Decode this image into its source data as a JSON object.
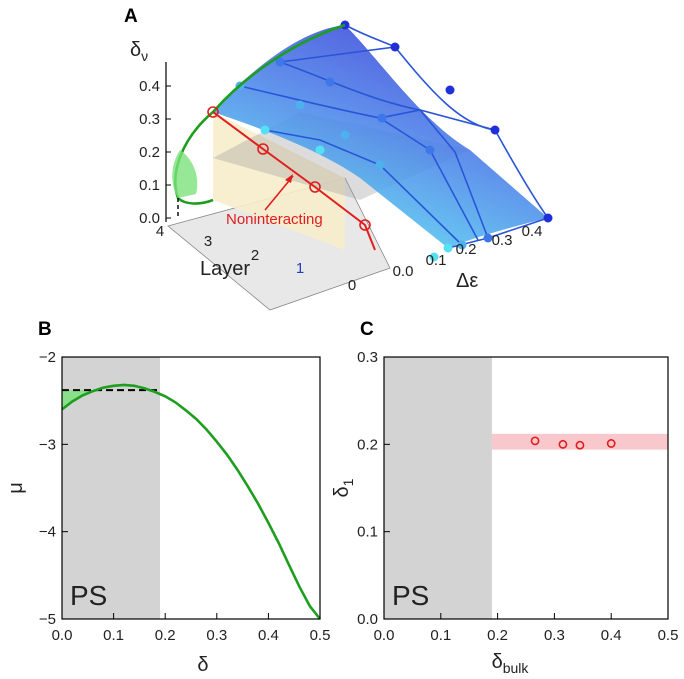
{
  "panels": {
    "a": {
      "letter": "A",
      "z_label": "δ_ν",
      "x_label": "Δε",
      "y_label": "Layer",
      "annotation": "Noninteracting",
      "z_ticks": [
        "0.0",
        "0.1",
        "0.2",
        "0.3",
        "0.4"
      ],
      "x_ticks": [
        "0.0",
        "0.1",
        "0.2",
        "0.3",
        "0.4"
      ],
      "layer_ticks": [
        "0",
        "1",
        "2",
        "3",
        "4"
      ],
      "colors": {
        "surface_top": "#3a3ad8",
        "surface_bottom": "#56e0f4",
        "green": "#1e9e1e",
        "red": "#e01e1e",
        "plane": "#f7edcc"
      }
    },
    "b": {
      "letter": "B",
      "region_label": "PS"
    },
    "c": {
      "letter": "C",
      "region_label": "PS"
    }
  },
  "chart_data": [
    {
      "type": "line",
      "panel": "B",
      "title": "",
      "xlabel": "δ",
      "ylabel": "μ",
      "xlim": [
        0,
        0.5
      ],
      "ylim": [
        -5,
        -2
      ],
      "x_ticks": [
        "0.0",
        "0.1",
        "0.2",
        "0.3",
        "0.4",
        "0.5"
      ],
      "y_ticks": [
        "−2",
        "−3",
        "−4",
        "−5"
      ],
      "shaded_region": {
        "x": [
          0,
          0.19
        ],
        "color": "#d3d3d3"
      },
      "maxwell_line": {
        "x": [
          0,
          0.19
        ],
        "y": -2.38
      },
      "series": [
        {
          "color": "#1e9e1e",
          "x": [
            0,
            0.02,
            0.04,
            0.06,
            0.08,
            0.1,
            0.12,
            0.14,
            0.16,
            0.18,
            0.2,
            0.22,
            0.24,
            0.26,
            0.28,
            0.3,
            0.32,
            0.34,
            0.36,
            0.38,
            0.4,
            0.42,
            0.44,
            0.46,
            0.48,
            0.5
          ],
          "y": [
            -2.6,
            -2.51,
            -2.44,
            -2.39,
            -2.35,
            -2.33,
            -2.32,
            -2.33,
            -2.36,
            -2.4,
            -2.45,
            -2.52,
            -2.61,
            -2.71,
            -2.83,
            -2.97,
            -3.12,
            -3.29,
            -3.48,
            -3.68,
            -3.9,
            -4.13,
            -4.38,
            -4.63,
            -4.85,
            -5.0
          ]
        }
      ]
    },
    {
      "type": "scatter",
      "panel": "C",
      "title": "",
      "xlabel": "δ_bulk",
      "ylabel": "δ_1",
      "xlim": [
        0,
        0.5
      ],
      "ylim": [
        0,
        0.3
      ],
      "x_ticks": [
        "0.0",
        "0.1",
        "0.2",
        "0.3",
        "0.4",
        "0.5"
      ],
      "y_ticks": [
        "0.0",
        "0.1",
        "0.2",
        "0.3"
      ],
      "shaded_region": {
        "x": [
          0,
          0.19
        ],
        "color": "#d3d3d3"
      },
      "band": {
        "x": [
          0.19,
          0.5
        ],
        "y": [
          0.194,
          0.212
        ],
        "color": "#f8c8cc"
      },
      "series": [
        {
          "color": "#e01e1e",
          "x": [
            0.266,
            0.315,
            0.345,
            0.4
          ],
          "y": [
            0.204,
            0.2,
            0.199,
            0.201
          ]
        }
      ]
    }
  ]
}
